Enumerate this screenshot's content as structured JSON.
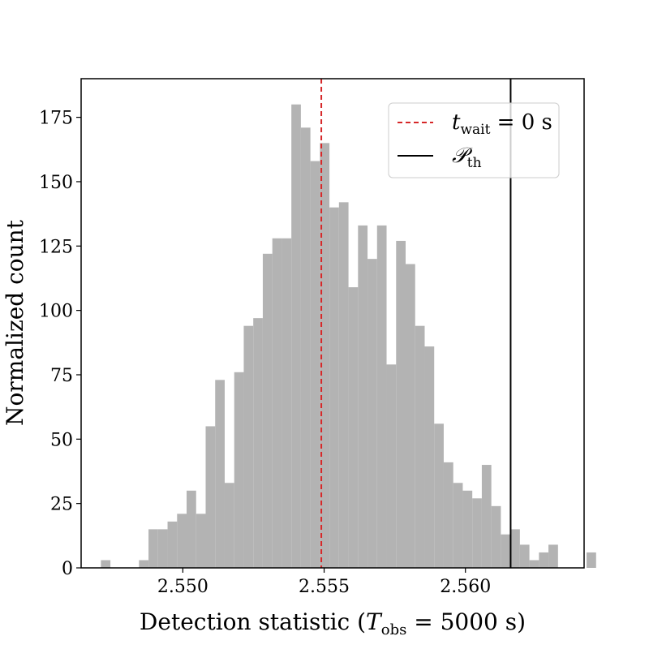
{
  "chart_data": {
    "type": "bar",
    "bin_start": 2.5471,
    "bin_width": 0.000337,
    "counts": [
      3,
      0,
      0,
      0,
      3,
      15,
      15,
      18,
      21,
      30,
      21,
      55,
      73,
      33,
      76,
      94,
      97,
      122,
      128,
      128,
      180,
      171,
      158,
      165,
      140,
      142,
      109,
      133,
      120,
      133,
      79,
      127,
      118,
      94,
      86,
      56,
      41,
      33,
      30,
      27,
      40,
      24,
      13,
      15,
      9,
      3,
      6,
      9,
      0,
      0,
      0,
      6
    ],
    "xlim": [
      2.5464,
      2.5642
    ],
    "ylim": [
      0,
      190
    ],
    "xticks": [
      2.55,
      2.555,
      2.56
    ],
    "xtick_labels": [
      "2.550",
      "2.555",
      "2.560"
    ],
    "yticks": [
      0,
      25,
      50,
      75,
      100,
      125,
      150,
      175
    ],
    "ytick_labels": [
      "0",
      "25",
      "50",
      "75",
      "100",
      "125",
      "150",
      "175"
    ],
    "xlabel_prefix": "Detection statistic (",
    "xlabel_var": "T",
    "xlabel_sub": "obs",
    "xlabel_suffix": " = 5000 s)",
    "ylabel": "Normalized count",
    "bar_color": "#b3b3b3",
    "vlines": [
      {
        "x": 2.5549,
        "color": "#d62728",
        "style": "dashed"
      },
      {
        "x": 2.5616,
        "color": "#000000",
        "style": "solid"
      }
    ],
    "legend": {
      "placement": "upper-right",
      "entries": [
        {
          "var": "t",
          "sub": "wait",
          "suffix": " = 0 s",
          "color": "#d62728",
          "style": "dashed"
        },
        {
          "var": "𝒫",
          "sub": "th",
          "suffix": "",
          "color": "#000000",
          "style": "solid"
        }
      ]
    }
  }
}
